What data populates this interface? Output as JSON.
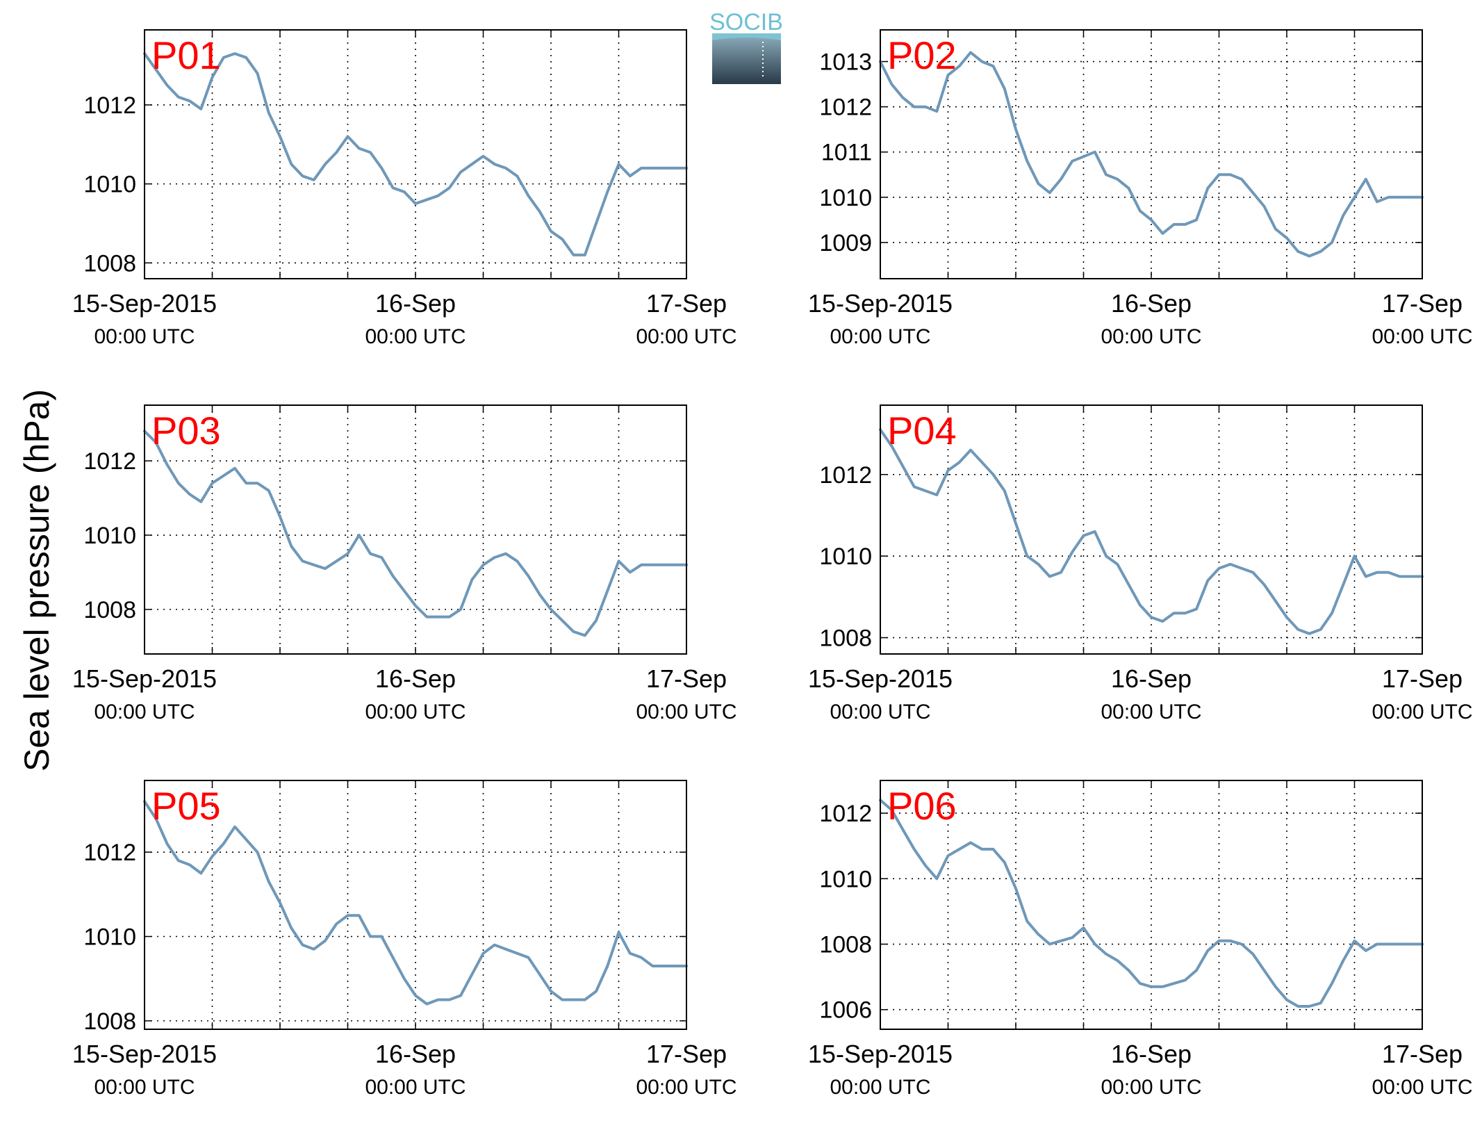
{
  "figure": {
    "ylabel": "Sea level pressure (hPa)",
    "logo_text": "SOCIB"
  },
  "series_color": "#6f98b8",
  "label_color": "#ff0000",
  "x_ticks": [
    {
      "t": 0,
      "label": "15-Sep-2015",
      "sub": "00:00 UTC"
    },
    {
      "t": 24,
      "label": "16-Sep",
      "sub": "00:00 UTC"
    },
    {
      "t": 48,
      "label": "17-Sep",
      "sub": "00:00 UTC"
    }
  ],
  "chart_data": [
    {
      "type": "line",
      "label": "P01",
      "x_unit": "hours since 15-Sep-2015 00:00 UTC",
      "xlim": [
        0,
        48
      ],
      "ylim": [
        1007.6,
        1013.9
      ],
      "yticks": [
        1008,
        1010,
        1012
      ],
      "grid": true,
      "x": [
        0,
        1,
        2,
        3,
        4,
        5,
        6,
        7,
        8,
        9,
        10,
        11,
        12,
        13,
        14,
        15,
        16,
        17,
        18,
        19,
        20,
        21,
        22,
        23,
        24,
        25,
        26,
        27,
        28,
        29,
        30,
        31,
        32,
        33,
        34,
        35,
        36,
        37,
        38,
        39,
        40,
        41,
        42,
        43,
        44,
        45,
        46,
        47,
        48
      ],
      "y": [
        1013.3,
        1012.9,
        1012.5,
        1012.2,
        1012.1,
        1011.9,
        1012.7,
        1013.2,
        1013.3,
        1013.2,
        1012.8,
        1011.8,
        1011.2,
        1010.5,
        1010.2,
        1010.1,
        1010.5,
        1010.8,
        1011.2,
        1010.9,
        1010.8,
        1010.4,
        1009.9,
        1009.8,
        1009.5,
        1009.6,
        1009.7,
        1009.9,
        1010.3,
        1010.5,
        1010.7,
        1010.5,
        1010.4,
        1010.2,
        1009.7,
        1009.3,
        1008.8,
        1008.6,
        1008.2,
        1008.2,
        1009.0,
        1009.8,
        1010.5,
        1010.2,
        1010.4,
        1010.4,
        1010.4,
        1010.4,
        1010.4
      ]
    },
    {
      "type": "line",
      "label": "P02",
      "x_unit": "hours since 15-Sep-2015 00:00 UTC",
      "xlim": [
        0,
        48
      ],
      "ylim": [
        1008.2,
        1013.7
      ],
      "yticks": [
        1009,
        1010,
        1011,
        1012,
        1013
      ],
      "grid": true,
      "x": [
        0,
        1,
        2,
        3,
        4,
        5,
        6,
        7,
        8,
        9,
        10,
        11,
        12,
        13,
        14,
        15,
        16,
        17,
        18,
        19,
        20,
        21,
        22,
        23,
        24,
        25,
        26,
        27,
        28,
        29,
        30,
        31,
        32,
        33,
        34,
        35,
        36,
        37,
        38,
        39,
        40,
        41,
        42,
        43,
        44,
        45,
        46,
        47,
        48
      ],
      "y": [
        1013.0,
        1012.5,
        1012.2,
        1012.0,
        1012.0,
        1011.9,
        1012.7,
        1012.9,
        1013.2,
        1013.0,
        1012.9,
        1012.4,
        1011.5,
        1010.8,
        1010.3,
        1010.1,
        1010.4,
        1010.8,
        1010.9,
        1011.0,
        1010.5,
        1010.4,
        1010.2,
        1009.7,
        1009.5,
        1009.2,
        1009.4,
        1009.4,
        1009.5,
        1010.2,
        1010.5,
        1010.5,
        1010.4,
        1010.1,
        1009.8,
        1009.3,
        1009.1,
        1008.8,
        1008.7,
        1008.8,
        1009.0,
        1009.6,
        1010.0,
        1010.4,
        1009.9,
        1010.0,
        1010.0,
        1010.0,
        1010.0
      ]
    },
    {
      "type": "line",
      "label": "P03",
      "x_unit": "hours since 15-Sep-2015 00:00 UTC",
      "xlim": [
        0,
        48
      ],
      "ylim": [
        1006.8,
        1013.5
      ],
      "yticks": [
        1008,
        1010,
        1012
      ],
      "grid": true,
      "x": [
        0,
        1,
        2,
        3,
        4,
        5,
        6,
        7,
        8,
        9,
        10,
        11,
        12,
        13,
        14,
        15,
        16,
        17,
        18,
        19,
        20,
        21,
        22,
        23,
        24,
        25,
        26,
        27,
        28,
        29,
        30,
        31,
        32,
        33,
        34,
        35,
        36,
        37,
        38,
        39,
        40,
        41,
        42,
        43,
        44,
        45,
        46,
        47,
        48
      ],
      "y": [
        1012.8,
        1012.5,
        1011.9,
        1011.4,
        1011.1,
        1010.9,
        1011.4,
        1011.6,
        1011.8,
        1011.4,
        1011.4,
        1011.2,
        1010.5,
        1009.7,
        1009.3,
        1009.2,
        1009.1,
        1009.3,
        1009.5,
        1010.0,
        1009.5,
        1009.4,
        1008.9,
        1008.5,
        1008.1,
        1007.8,
        1007.8,
        1007.8,
        1008.0,
        1008.8,
        1009.2,
        1009.4,
        1009.5,
        1009.3,
        1008.9,
        1008.4,
        1008.0,
        1007.7,
        1007.4,
        1007.3,
        1007.7,
        1008.5,
        1009.3,
        1009.0,
        1009.2,
        1009.2,
        1009.2,
        1009.2,
        1009.2
      ]
    },
    {
      "type": "line",
      "label": "P04",
      "x_unit": "hours since 15-Sep-2015 00:00 UTC",
      "xlim": [
        0,
        48
      ],
      "ylim": [
        1007.6,
        1013.7
      ],
      "yticks": [
        1008,
        1010,
        1012
      ],
      "grid": true,
      "x": [
        0,
        1,
        2,
        3,
        4,
        5,
        6,
        7,
        8,
        9,
        10,
        11,
        12,
        13,
        14,
        15,
        16,
        17,
        18,
        19,
        20,
        21,
        22,
        23,
        24,
        25,
        26,
        27,
        28,
        29,
        30,
        31,
        32,
        33,
        34,
        35,
        36,
        37,
        38,
        39,
        40,
        41,
        42,
        43,
        44,
        45,
        46,
        47,
        48
      ],
      "y": [
        1013.1,
        1012.7,
        1012.2,
        1011.7,
        1011.6,
        1011.5,
        1012.1,
        1012.3,
        1012.6,
        1012.3,
        1012.0,
        1011.6,
        1010.8,
        1010.0,
        1009.8,
        1009.5,
        1009.6,
        1010.1,
        1010.5,
        1010.6,
        1010.0,
        1009.8,
        1009.3,
        1008.8,
        1008.5,
        1008.4,
        1008.6,
        1008.6,
        1008.7,
        1009.4,
        1009.7,
        1009.8,
        1009.7,
        1009.6,
        1009.3,
        1008.9,
        1008.5,
        1008.2,
        1008.1,
        1008.2,
        1008.6,
        1009.3,
        1010.0,
        1009.5,
        1009.6,
        1009.6,
        1009.5,
        1009.5,
        1009.5
      ]
    },
    {
      "type": "line",
      "label": "P05",
      "x_unit": "hours since 15-Sep-2015 00:00 UTC",
      "xlim": [
        0,
        48
      ],
      "ylim": [
        1007.8,
        1013.7
      ],
      "yticks": [
        1008,
        1010,
        1012
      ],
      "grid": true,
      "x": [
        0,
        1,
        2,
        3,
        4,
        5,
        6,
        7,
        8,
        9,
        10,
        11,
        12,
        13,
        14,
        15,
        16,
        17,
        18,
        19,
        20,
        21,
        22,
        23,
        24,
        25,
        26,
        27,
        28,
        29,
        30,
        31,
        32,
        33,
        34,
        35,
        36,
        37,
        38,
        39,
        40,
        41,
        42,
        43,
        44,
        45,
        46,
        47,
        48
      ],
      "y": [
        1013.2,
        1012.8,
        1012.2,
        1011.8,
        1011.7,
        1011.5,
        1011.9,
        1012.2,
        1012.6,
        1012.3,
        1012.0,
        1011.3,
        1010.8,
        1010.2,
        1009.8,
        1009.7,
        1009.9,
        1010.3,
        1010.5,
        1010.5,
        1010.0,
        1010.0,
        1009.5,
        1009.0,
        1008.6,
        1008.4,
        1008.5,
        1008.5,
        1008.6,
        1009.1,
        1009.6,
        1009.8,
        1009.7,
        1009.6,
        1009.5,
        1009.1,
        1008.7,
        1008.5,
        1008.5,
        1008.5,
        1008.7,
        1009.3,
        1010.1,
        1009.6,
        1009.5,
        1009.3,
        1009.3,
        1009.3,
        1009.3
      ]
    },
    {
      "type": "line",
      "label": "P06",
      "x_unit": "hours since 15-Sep-2015 00:00 UTC",
      "xlim": [
        0,
        48
      ],
      "ylim": [
        1005.4,
        1013.0
      ],
      "yticks": [
        1006,
        1008,
        1010,
        1012
      ],
      "grid": true,
      "x": [
        0,
        1,
        2,
        3,
        4,
        5,
        6,
        7,
        8,
        9,
        10,
        11,
        12,
        13,
        14,
        15,
        16,
        17,
        18,
        19,
        20,
        21,
        22,
        23,
        24,
        25,
        26,
        27,
        28,
        29,
        30,
        31,
        32,
        33,
        34,
        35,
        36,
        37,
        38,
        39,
        40,
        41,
        42,
        43,
        44,
        45,
        46,
        47,
        48
      ],
      "y": [
        1012.4,
        1012.1,
        1011.5,
        1010.9,
        1010.4,
        1010.0,
        1010.7,
        1010.9,
        1011.1,
        1010.9,
        1010.9,
        1010.5,
        1009.7,
        1008.7,
        1008.3,
        1008.0,
        1008.1,
        1008.2,
        1008.5,
        1008.0,
        1007.7,
        1007.5,
        1007.2,
        1006.8,
        1006.7,
        1006.7,
        1006.8,
        1006.9,
        1007.2,
        1007.8,
        1008.1,
        1008.1,
        1008.0,
        1007.7,
        1007.2,
        1006.7,
        1006.3,
        1006.1,
        1006.1,
        1006.2,
        1006.8,
        1007.5,
        1008.1,
        1007.8,
        1008.0,
        1008.0,
        1008.0,
        1008.0,
        1008.0
      ]
    }
  ]
}
